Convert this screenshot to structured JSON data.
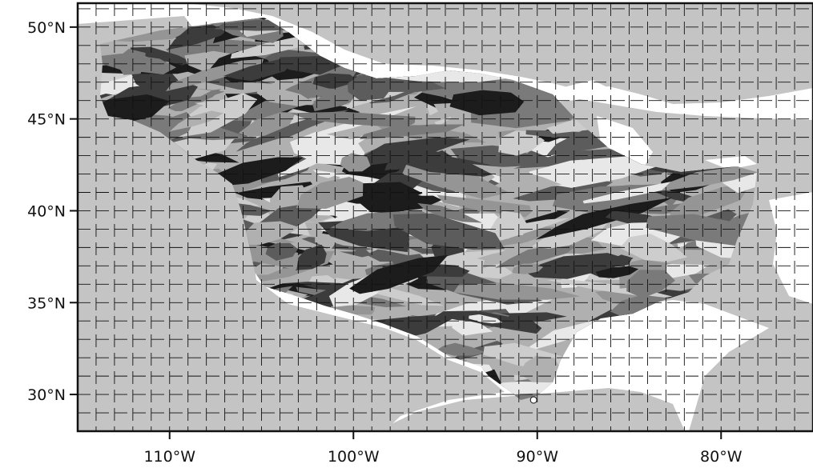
{
  "map": {
    "lon_range": [
      -115,
      -75
    ],
    "lat_range": [
      28,
      51.3
    ],
    "grid_spacing_deg": 1,
    "colors": {
      "land_background": "#c4c4c4",
      "ocean": "#ffffff",
      "frame": "#111111",
      "grid": "#111111",
      "basin_palette": [
        "#1c1c1c",
        "#3c3c3c",
        "#5c5c5c",
        "#7a7a7a",
        "#959595",
        "#b0b0b0",
        "#cdcdcd",
        "#e8e8e8"
      ]
    },
    "x_ticks": [
      {
        "lon": -110,
        "label": "110°W"
      },
      {
        "lon": -100,
        "label": "100°W"
      },
      {
        "lon": -90,
        "label": "90°W"
      },
      {
        "lon": -80,
        "label": "80°W"
      }
    ],
    "y_ticks": [
      {
        "lat": 50,
        "label": "50°N"
      },
      {
        "lat": 45,
        "label": "45°N"
      },
      {
        "lat": 40,
        "label": "40°N"
      },
      {
        "lat": 35,
        "label": "35°N"
      },
      {
        "lat": 30,
        "label": "30°N"
      }
    ],
    "gauge_outlet": {
      "lon": -90.2,
      "lat": 29.7
    }
  }
}
